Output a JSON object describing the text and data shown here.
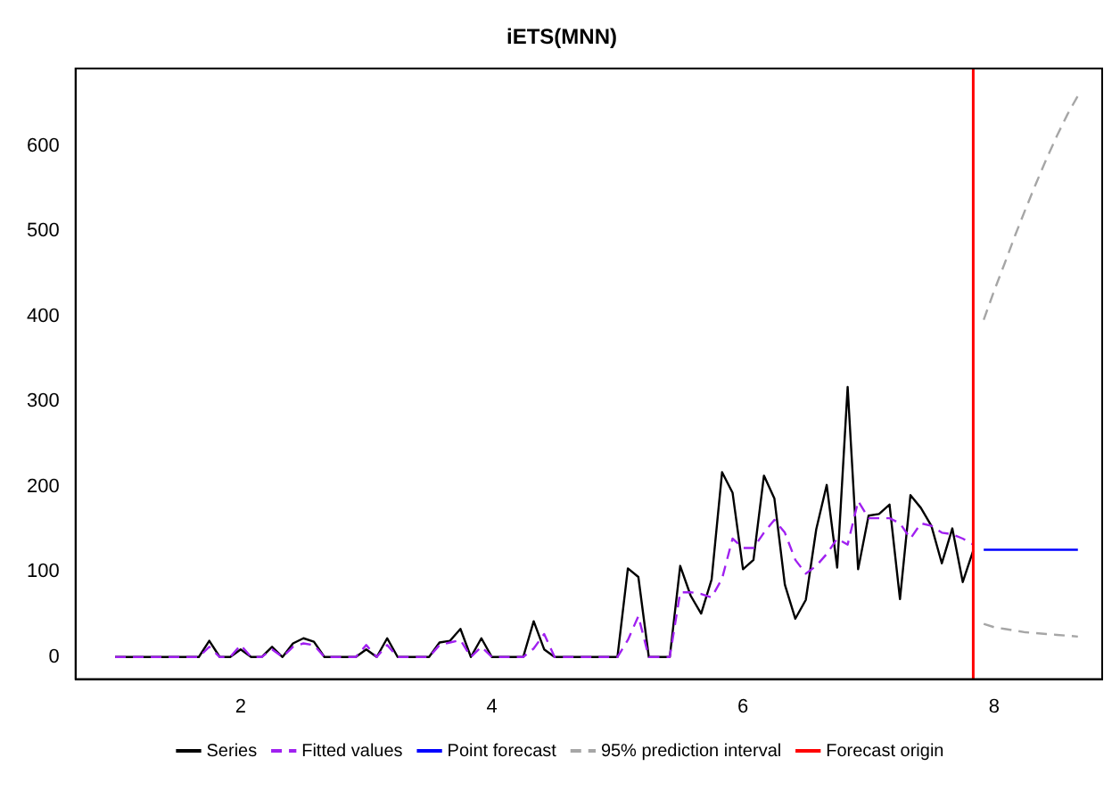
{
  "chart_data": {
    "type": "line",
    "title": "iETS(MNN)",
    "xlim": [
      0.685,
      8.86
    ],
    "ylim": [
      -26,
      691
    ],
    "xticks": [
      2,
      4,
      6,
      8
    ],
    "yticks": [
      0,
      100,
      200,
      300,
      400,
      500,
      600
    ],
    "legend": "bottom",
    "marker": "none",
    "series": [
      {
        "name": "Series",
        "color": "#000000",
        "line_style": "solid",
        "x": [
          1,
          1.0833,
          1.1667,
          1.25,
          1.3333,
          1.4167,
          1.5,
          1.5833,
          1.6667,
          1.75,
          1.8333,
          1.9167,
          2,
          2.0833,
          2.1667,
          2.25,
          2.3333,
          2.4167,
          2.5,
          2.5833,
          2.6667,
          2.75,
          2.8333,
          2.9167,
          3,
          3.0833,
          3.1667,
          3.25,
          3.3333,
          3.4167,
          3.5,
          3.5833,
          3.6667,
          3.75,
          3.8333,
          3.9167,
          4,
          4.0833,
          4.1667,
          4.25,
          4.3333,
          4.4167,
          4.5,
          4.5833,
          4.6667,
          4.75,
          4.8333,
          4.9167,
          5,
          5.0833,
          5.1667,
          5.25,
          5.3333,
          5.4167,
          5.5,
          5.5833,
          5.6667,
          5.75,
          5.8333,
          5.9167,
          6,
          6.0833,
          6.1667,
          6.25,
          6.3333,
          6.4167,
          6.5,
          6.5833,
          6.6667,
          6.75,
          6.8333,
          6.9167,
          7,
          7.0833,
          7.1667,
          7.25,
          7.3333,
          7.4167,
          7.5,
          7.5833,
          7.6667,
          7.75,
          7.8333
        ],
        "values": [
          0,
          0,
          0,
          0,
          0,
          0,
          0,
          0,
          0,
          19,
          0,
          0,
          9,
          0,
          0,
          12,
          0,
          16,
          22,
          18,
          0,
          0,
          0,
          0,
          9,
          0,
          22,
          0,
          0,
          0,
          0,
          17,
          19,
          33,
          0,
          22,
          0,
          0,
          0,
          0,
          42,
          9,
          0,
          0,
          0,
          0,
          0,
          0,
          0,
          104,
          94,
          0,
          0,
          0,
          107,
          72,
          51,
          91,
          217,
          193,
          103,
          114,
          213,
          186,
          85,
          45,
          67,
          150,
          202,
          105,
          317,
          103,
          166,
          168,
          179,
          68,
          190,
          175,
          154,
          110,
          151,
          88,
          125
        ]
      },
      {
        "name": "Fitted values",
        "color": "#a020f0",
        "line_style": "dashed",
        "x": [
          1,
          1.0833,
          1.1667,
          1.25,
          1.3333,
          1.4167,
          1.5,
          1.5833,
          1.6667,
          1.75,
          1.8333,
          1.9167,
          2,
          2.0833,
          2.1667,
          2.25,
          2.3333,
          2.4167,
          2.5,
          2.5833,
          2.6667,
          2.75,
          2.8333,
          2.9167,
          3,
          3.0833,
          3.1667,
          3.25,
          3.3333,
          3.4167,
          3.5,
          3.5833,
          3.6667,
          3.75,
          3.8333,
          3.9167,
          4,
          4.0833,
          4.1667,
          4.25,
          4.3333,
          4.4167,
          4.5,
          4.5833,
          4.6667,
          4.75,
          4.8333,
          4.9167,
          5,
          5.0833,
          5.1667,
          5.25,
          5.3333,
          5.4167,
          5.5,
          5.5833,
          5.6667,
          5.75,
          5.8333,
          5.9167,
          6,
          6.0833,
          6.1667,
          6.25,
          6.3333,
          6.4167,
          6.5,
          6.5833,
          6.6667,
          6.75,
          6.8333,
          6.9167,
          7,
          7.0833,
          7.1667,
          7.25,
          7.3333,
          7.4167,
          7.5,
          7.5833,
          7.6667,
          7.75,
          7.8333
        ],
        "values": [
          0,
          0,
          0,
          0,
          0,
          0,
          0,
          0,
          0,
          12,
          0,
          0,
          14,
          0,
          0,
          9,
          0,
          12,
          16,
          14,
          0,
          0,
          0,
          0,
          14,
          0,
          14,
          0,
          0,
          0,
          0,
          14,
          17,
          20,
          0,
          12,
          0,
          0,
          0,
          0,
          10,
          27,
          0,
          0,
          0,
          0,
          0,
          0,
          0,
          20,
          48,
          0,
          0,
          0,
          76,
          76,
          74,
          70,
          92,
          139,
          128,
          128,
          146,
          161,
          146,
          114,
          98,
          107,
          121,
          139,
          132,
          183,
          163,
          163,
          163,
          157,
          139,
          157,
          154,
          146,
          144,
          139,
          132
        ]
      },
      {
        "name": "Point forecast",
        "color": "#0000ff",
        "line_style": "solid",
        "x": [
          7.9167,
          8,
          8.0833,
          8.1667,
          8.25,
          8.3333,
          8.4167,
          8.5,
          8.5833,
          8.6667
        ],
        "values": [
          126,
          126,
          126,
          126,
          126,
          126,
          126,
          126,
          126,
          126
        ]
      },
      {
        "name": "95% prediction interval",
        "color": "#a6a6a6",
        "line_style": "dashed",
        "x": [
          7.9167,
          8,
          8.0833,
          8.1667,
          8.25,
          8.3333,
          8.4167,
          8.5,
          8.5833,
          8.6667
        ],
        "values": [
          396,
          430,
          462,
          495,
          526,
          556,
          585,
          612,
          637,
          659
        ]
      },
      {
        "color": "#a6a6a6",
        "line_style": "dashed",
        "x": [
          7.9167,
          8,
          8.0833,
          8.1667,
          8.25,
          8.3333,
          8.4167,
          8.5,
          8.5833,
          8.6667
        ],
        "values": [
          39,
          35,
          33,
          31,
          29,
          28,
          27,
          26,
          25,
          24
        ]
      }
    ],
    "ref_lines": [
      {
        "axis": "x",
        "value": 7.8333,
        "label": "Forecast origin",
        "color": "#ff0000",
        "line_style": "solid"
      }
    ]
  }
}
